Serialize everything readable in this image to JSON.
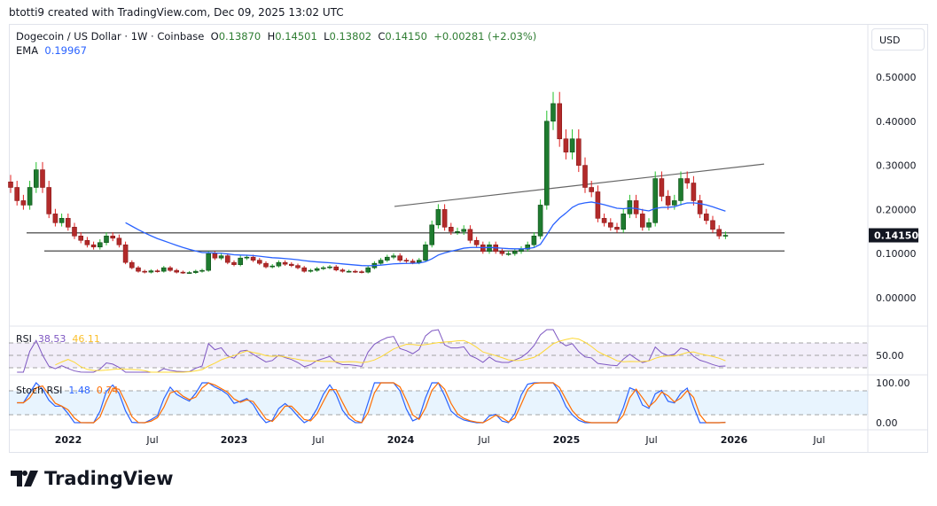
{
  "credit": "btotti9 created with TradingView.com, Dec 09, 2025 13:02 UTC",
  "legend": {
    "symbol": "Dogecoin / US Dollar · 1W · Coinbase",
    "open_label": "O",
    "open": "0.13870",
    "high_label": "H",
    "high": "0.14501",
    "low_label": "L",
    "low": "0.13802",
    "close_label": "C",
    "close": "0.14150",
    "change": "+0.00281 (+2.03%)",
    "ema_label": "EMA",
    "ema_value": "0.19967"
  },
  "currency_button": "USD",
  "rsi": {
    "label": "RSI",
    "value": "38.53",
    "ma_value": "46.11",
    "axis_label": "50.00"
  },
  "stoch": {
    "label": "Stoch RSI",
    "k_value": "1.48",
    "d_value": "0.74",
    "axis_top": "100.00",
    "axis_bottom": "0.00"
  },
  "logo_text": "TradingView",
  "colors": {
    "up": "#1e7b2f",
    "down": "#b22a2a",
    "ema": "#2962ff",
    "rsi": "#7e57c2",
    "rsi_ma": "#fdd835",
    "stoch_k": "#2962ff",
    "stoch_d": "#ff6d00",
    "last_price_bg": "#131722"
  },
  "chart_data": {
    "type": "candlestick",
    "ylim": [
      0,
      0.5
    ],
    "y_ticks": [
      "0.50000",
      "0.40000",
      "0.30000",
      "0.20000",
      "0.10000",
      "0.00000"
    ],
    "x_ticks": [
      "2022",
      "Jul",
      "2023",
      "Jul",
      "2024",
      "Jul",
      "2025",
      "Jul",
      "2026",
      "Jul"
    ],
    "last_price": "0.14150",
    "closes": [
      0.25,
      0.22,
      0.21,
      0.25,
      0.29,
      0.25,
      0.19,
      0.17,
      0.18,
      0.16,
      0.14,
      0.13,
      0.12,
      0.115,
      0.125,
      0.14,
      0.135,
      0.12,
      0.08,
      0.068,
      0.06,
      0.058,
      0.061,
      0.06,
      0.068,
      0.062,
      0.058,
      0.057,
      0.057,
      0.06,
      0.062,
      0.1,
      0.09,
      0.095,
      0.08,
      0.075,
      0.09,
      0.092,
      0.085,
      0.078,
      0.07,
      0.072,
      0.08,
      0.076,
      0.073,
      0.068,
      0.06,
      0.062,
      0.066,
      0.068,
      0.07,
      0.063,
      0.06,
      0.06,
      0.059,
      0.058,
      0.068,
      0.078,
      0.085,
      0.092,
      0.095,
      0.085,
      0.083,
      0.08,
      0.085,
      0.12,
      0.165,
      0.2,
      0.16,
      0.15,
      0.15,
      0.155,
      0.13,
      0.12,
      0.105,
      0.12,
      0.105,
      0.1,
      0.1,
      0.105,
      0.11,
      0.12,
      0.14,
      0.21,
      0.4,
      0.44,
      0.36,
      0.33,
      0.36,
      0.3,
      0.25,
      0.24,
      0.18,
      0.17,
      0.16,
      0.155,
      0.19,
      0.22,
      0.19,
      0.16,
      0.17,
      0.27,
      0.23,
      0.21,
      0.22,
      0.27,
      0.26,
      0.22,
      0.19,
      0.175,
      0.155,
      0.14,
      0.1415
    ],
    "horizontal_levels": [
      0.147,
      0.106
    ],
    "trendline": {
      "from_price": 0.207,
      "to_price": 0.303
    },
    "rsi_levels": [
      70,
      50,
      30
    ],
    "stoch_levels": [
      80,
      20
    ]
  }
}
